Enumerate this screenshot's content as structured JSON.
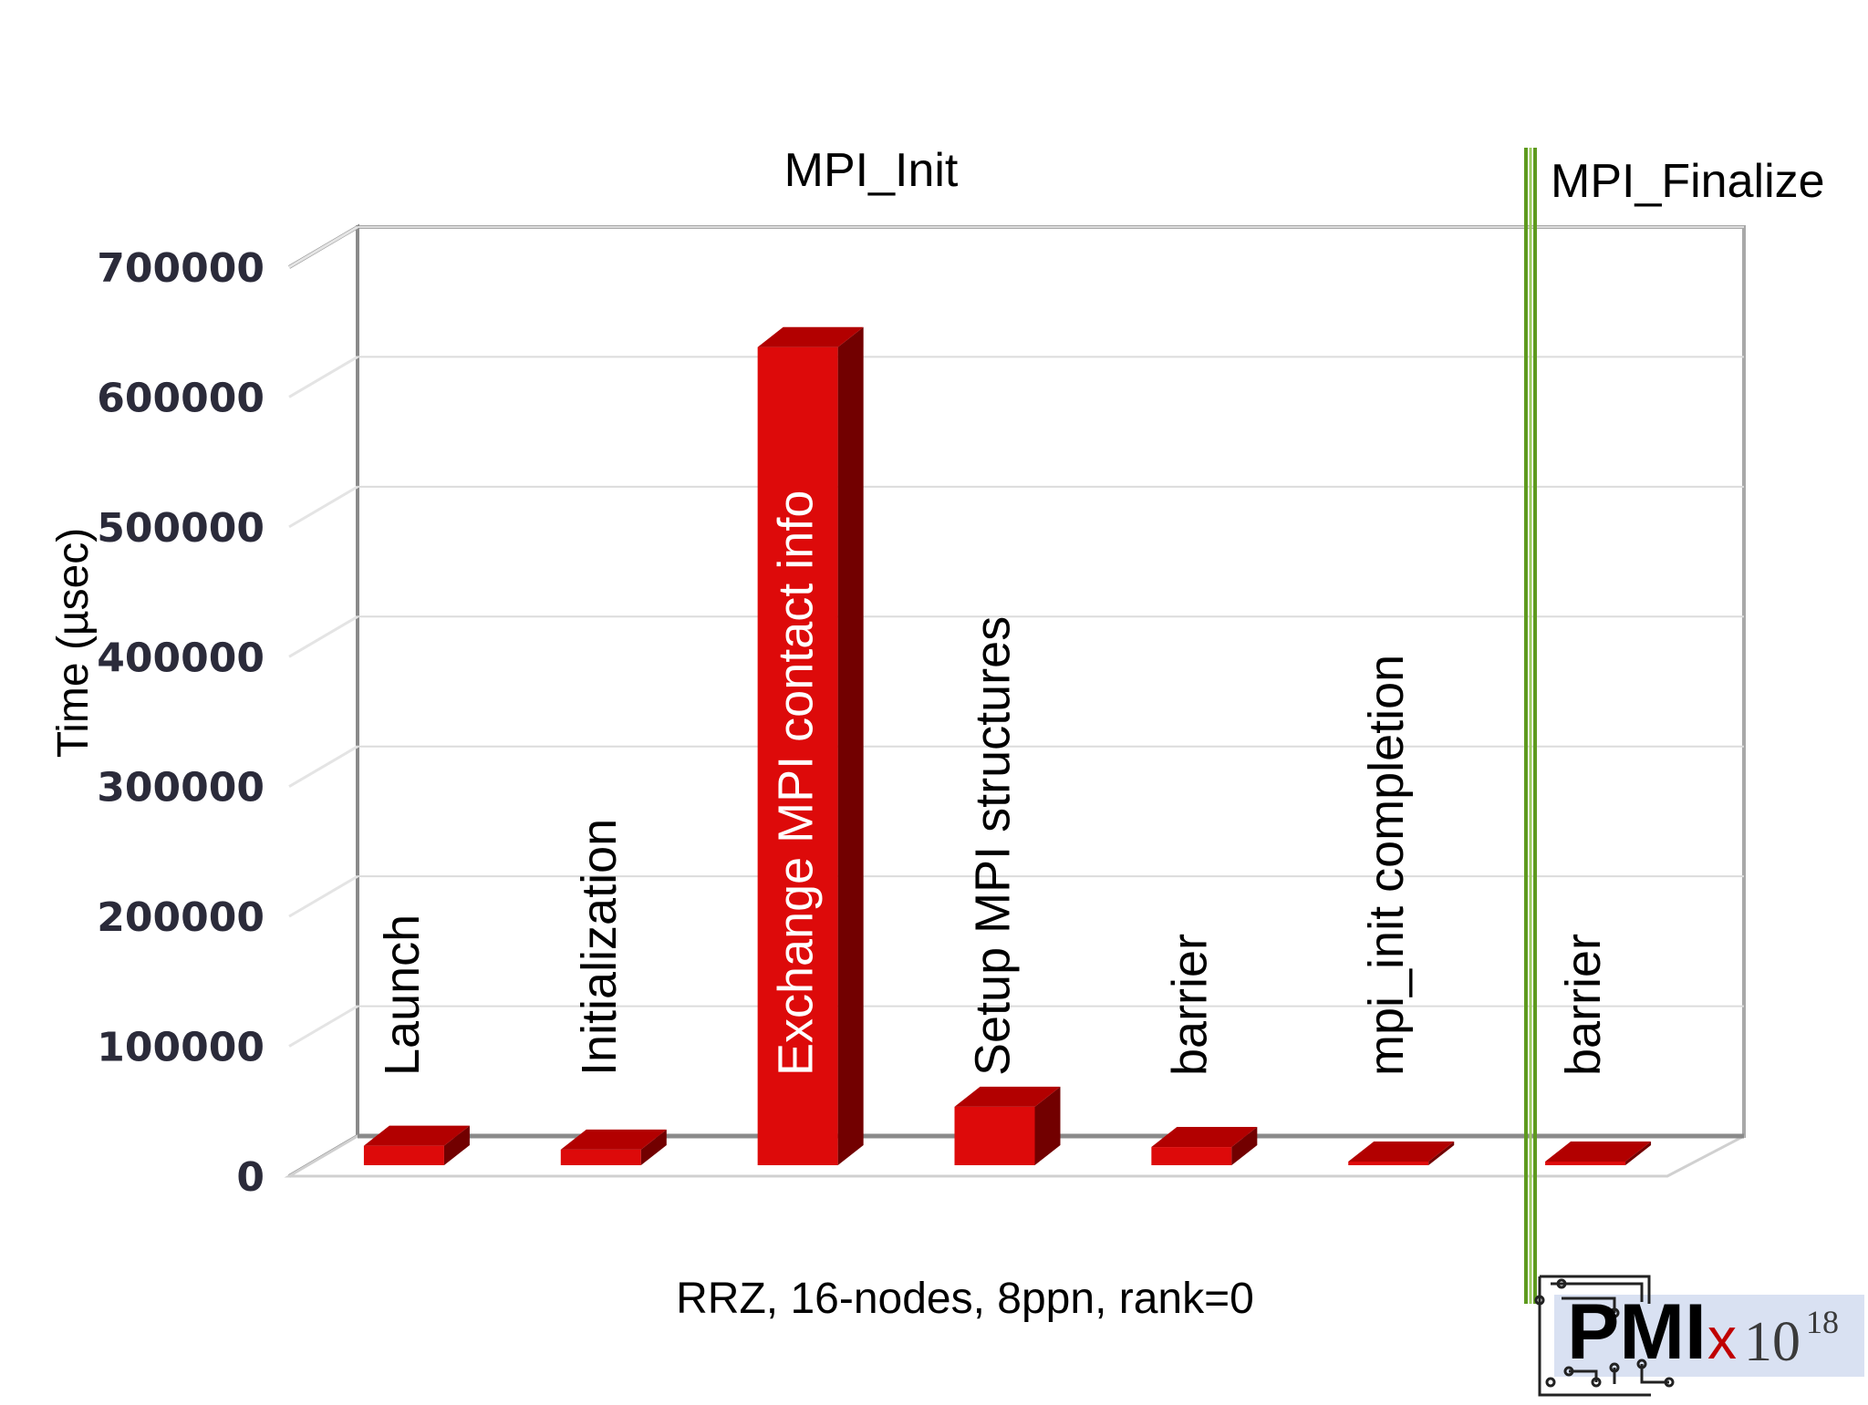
{
  "chart_data": {
    "type": "bar",
    "title": "",
    "xlabel": "RRZ, 16-nodes, 8ppn, rank=0",
    "ylabel": "Time (µsec)",
    "ylim": [
      0,
      700000
    ],
    "yticks": [
      0,
      100000,
      200000,
      300000,
      400000,
      500000,
      600000,
      700000
    ],
    "grid": true,
    "categories": [
      "Launch",
      "Initialization",
      "Exchange MPI contact info",
      "Setup MPI structures",
      "barrier",
      "mpi_init completion",
      "barrier"
    ],
    "values": [
      15000,
      12000,
      630000,
      45000,
      14000,
      2000,
      2000
    ],
    "sections": [
      {
        "label": "MPI_Init",
        "categories": 6
      },
      {
        "label": "MPI_Finalize",
        "categories": 1
      }
    ],
    "colors": {
      "bar_front": "#dd0a0a",
      "bar_top": "#b20000",
      "bar_side": "#720000",
      "separator": "#5e9a1e"
    }
  },
  "logo": {
    "main": "PMI",
    "x": "x",
    "exponent_base": "10",
    "exponent_power": "18"
  }
}
